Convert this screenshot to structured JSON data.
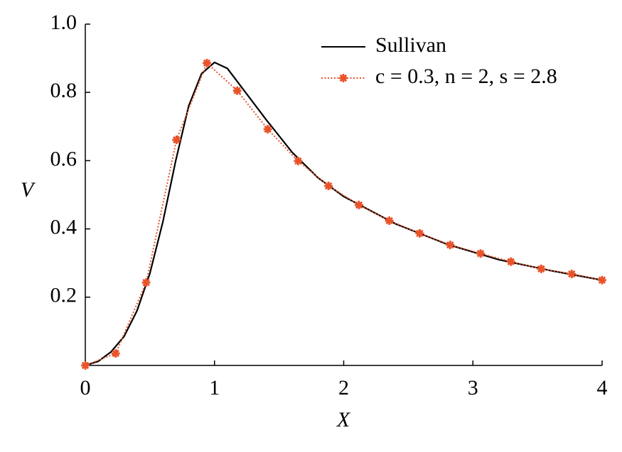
{
  "chart_data": {
    "type": "line",
    "x_label": "X",
    "y_label": "V",
    "xlim": [
      0,
      4
    ],
    "ylim": [
      0,
      1
    ],
    "xticks": [
      0,
      1,
      2,
      3,
      4
    ],
    "yticks": [
      0.2,
      0.4,
      0.6,
      0.8,
      {
        "value": 1,
        "label": "1.0"
      }
    ],
    "legend": "upper right",
    "series": [
      {
        "name": "Sullivan",
        "color": "#000000",
        "style": "solid",
        "marker": "none",
        "x": [
          0,
          0.1,
          0.2,
          0.3,
          0.4,
          0.5,
          0.6,
          0.7,
          0.8,
          0.9,
          1.0,
          1.1,
          1.2,
          1.4,
          1.6,
          1.8,
          2.0,
          2.4,
          2.8,
          3.2,
          3.6,
          4.0
        ],
        "values": [
          0,
          0.012,
          0.04,
          0.085,
          0.16,
          0.27,
          0.42,
          0.6,
          0.76,
          0.855,
          0.888,
          0.87,
          0.82,
          0.72,
          0.625,
          0.55,
          0.495,
          0.415,
          0.355,
          0.31,
          0.278,
          0.25
        ]
      },
      {
        "name": "c = 0.3, n = 2, s = 2.8",
        "color": "#e8532a",
        "style": "dotted",
        "marker": "star",
        "x": [
          0,
          0.235,
          0.471,
          0.706,
          0.941,
          1.176,
          1.412,
          1.647,
          1.882,
          2.118,
          2.353,
          2.588,
          2.824,
          3.059,
          3.294,
          3.529,
          3.765,
          4.0
        ],
        "values": [
          0,
          0.035,
          0.243,
          0.661,
          0.886,
          0.805,
          0.692,
          0.599,
          0.526,
          0.47,
          0.424,
          0.387,
          0.353,
          0.328,
          0.304,
          0.283,
          0.268,
          0.25
        ]
      }
    ]
  }
}
